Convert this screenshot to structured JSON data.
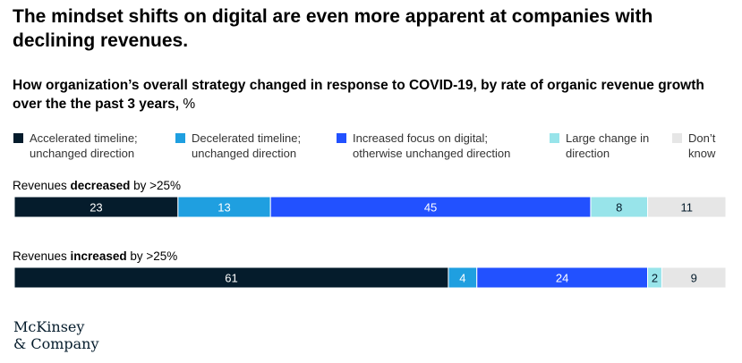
{
  "title": "The mindset shifts on digital are even more apparent at companies with declining revenues.",
  "subtitle": {
    "main": "How organization’s overall strategy changed in response to COVID-19, by rate of organic revenue growth over the the past 3 years,",
    "unit": " %"
  },
  "logo": {
    "line1": "McKinsey",
    "line2": "& Company"
  },
  "chart_data": {
    "type": "bar",
    "orientation": "horizontal-stacked",
    "unit": "%",
    "legend": [
      {
        "name": "Accelerated timeline; unchanged direction",
        "color": "#051c2c"
      },
      {
        "name": "Decelerated timeline; unchanged direction",
        "color": "#1f9fe0"
      },
      {
        "name": "Increased focus on digital; otherwise unchanged direction",
        "color": "#2251ff"
      },
      {
        "name": "Large change in direction",
        "color": "#98e4ea"
      },
      {
        "name": "Don’t know",
        "color": "#e6e6e6"
      }
    ],
    "rows": [
      {
        "label_pre": "Revenues ",
        "label_bold": "decreased",
        "label_post": " by >25%",
        "values": [
          23,
          13,
          45,
          8,
          11
        ]
      },
      {
        "label_pre": "Revenues ",
        "label_bold": "increased",
        "label_post": " by >25%",
        "values": [
          61,
          4,
          24,
          2,
          9
        ]
      }
    ]
  }
}
